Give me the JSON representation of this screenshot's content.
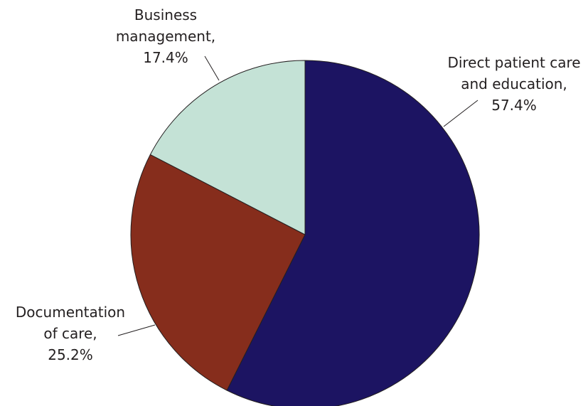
{
  "chart_data": {
    "type": "pie",
    "slices": [
      {
        "name": "Direct patient care and education",
        "value": 57.4,
        "color": "#1c1462",
        "label_lines": [
          "Direct patient care",
          "and education,",
          "57.4%"
        ]
      },
      {
        "name": "Documentation of care",
        "value": 25.2,
        "color": "#862d1c",
        "label_lines": [
          "Documentation",
          "of care,",
          "25.2%"
        ]
      },
      {
        "name": "Business management",
        "value": 17.4,
        "color": "#c4e2d6",
        "label_lines": [
          "Business",
          "management,",
          "17.4%"
        ]
      }
    ],
    "start_angle_deg": 0,
    "direction": "clockwise"
  }
}
